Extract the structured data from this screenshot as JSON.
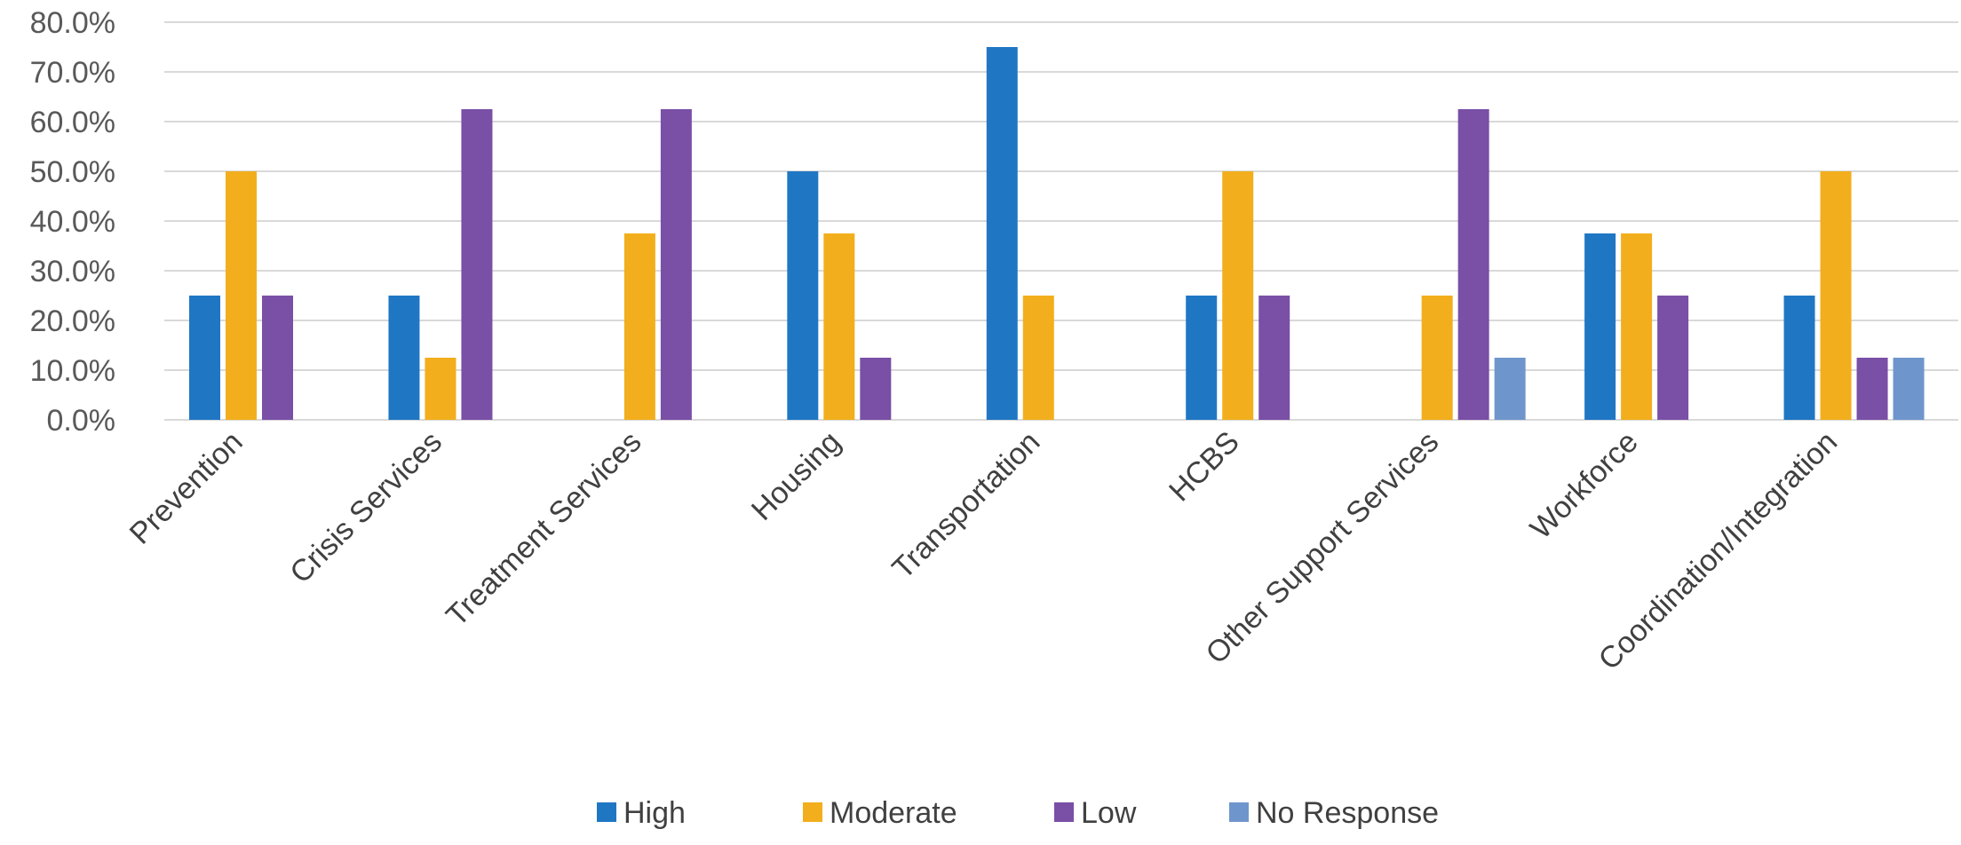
{
  "chart_data": {
    "type": "bar",
    "title": "",
    "xlabel": "",
    "ylabel": "",
    "ylim": [
      0,
      80
    ],
    "yticks": [
      0,
      10,
      20,
      30,
      40,
      50,
      60,
      70,
      80
    ],
    "ytick_labels": [
      "0.0%",
      "10.0%",
      "20.0%",
      "30.0%",
      "40.0%",
      "50.0%",
      "60.0%",
      "70.0%",
      "80.0%"
    ],
    "grid": true,
    "legend_position": "bottom",
    "categories": [
      "Prevention",
      "Crisis Services",
      "Treatment Services",
      "Housing",
      "Transportation",
      "HCBS",
      "Other Support Services",
      "Workforce",
      "Coordination/Integration"
    ],
    "series": [
      {
        "name": "High",
        "color": "#1f77c4",
        "values": [
          25,
          25,
          0,
          50,
          75,
          25,
          0,
          37.5,
          25
        ]
      },
      {
        "name": "Moderate",
        "color": "#f2ae1c",
        "values": [
          50,
          12.5,
          37.5,
          37.5,
          25,
          50,
          25,
          37.5,
          50
        ]
      },
      {
        "name": "Low",
        "color": "#7a4fa6",
        "values": [
          25,
          62.5,
          62.5,
          12.5,
          0,
          25,
          62.5,
          25,
          12.5
        ]
      },
      {
        "name": "No Response",
        "color": "#6f96cc",
        "values": [
          0,
          0,
          0,
          0,
          0,
          0,
          12.5,
          0,
          12.5
        ]
      }
    ]
  }
}
